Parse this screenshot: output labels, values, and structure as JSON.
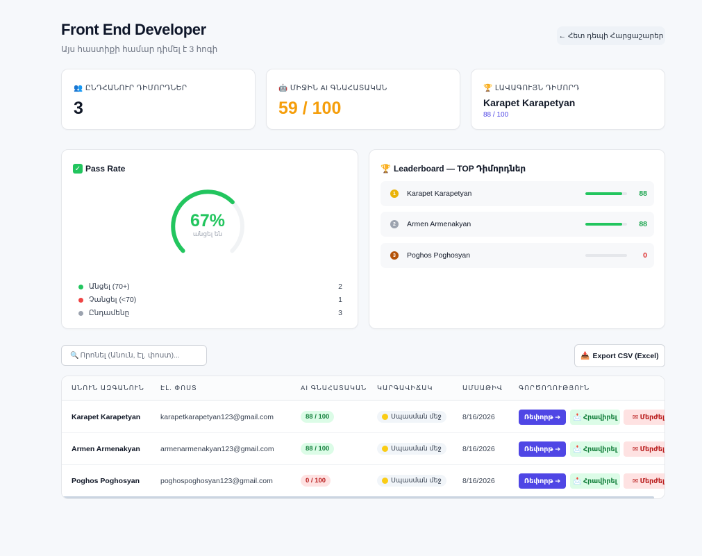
{
  "header": {
    "title": "Front End Developer",
    "subtitle": "Այս հաստիքի համար դիմել է 3 հոգի",
    "back_button": "← Հետ դեպի Հարցաշարեր"
  },
  "stats": {
    "total": {
      "icon": "👥",
      "label": "ԸՆԴՀԱՆՈՒՐ ԴԻՄՈՐԴՆԵՐ",
      "value": "3"
    },
    "average": {
      "icon": "🤖",
      "label": "ՄԻՋԻՆ AI ԳՆԱՀԱՏԱԿԱՆ",
      "value": "59 / 100",
      "color": "#f59e0b"
    },
    "best": {
      "icon": "🏆",
      "label": "ԼԱՎԱԳՈՒՅՆ ԴԻՄՈՐԴ",
      "name": "Karapet Karapetyan",
      "score": "88 / 100"
    }
  },
  "pass_rate": {
    "title": "Pass Rate",
    "percent": "67%",
    "percent_value": 0.67,
    "gauge_label": "անցել են",
    "legend": [
      {
        "label": "Անցել (70+)",
        "count": "2",
        "color": "#22c55e"
      },
      {
        "label": "Չանցել (<70)",
        "count": "1",
        "color": "#ef4444"
      },
      {
        "label": "Ընդամենը",
        "count": "3",
        "color": "#9ca3af"
      }
    ]
  },
  "leaderboard": {
    "title": "Leaderboard — TOP Դիմորդներ",
    "rows": [
      {
        "name": "Karapet Karapetyan",
        "score": "88",
        "fill": 0.88,
        "medal": "1",
        "medal_color": "#eab308",
        "score_color": "#16a34a"
      },
      {
        "name": "Armen Armenakyan",
        "score": "88",
        "fill": 0.88,
        "medal": "2",
        "medal_color": "#9ca3af",
        "score_color": "#16a34a"
      },
      {
        "name": "Poghos Poghosyan",
        "score": "0",
        "fill": 0,
        "medal": "3",
        "medal_color": "#b45309",
        "score_color": "#dc2626"
      }
    ]
  },
  "search": {
    "placeholder": "Որոնել (Անուն, Էլ. փոստ)..."
  },
  "export": {
    "icon": "📥",
    "label": "Export CSV (Excel)"
  },
  "table": {
    "headers": [
      "ԱՆՈՒՆ ԱԶԳԱՆՈՒՆ",
      "ԷԼ. ՓՈՍՏ",
      "AI ԳՆԱՀԱՏԱԿԱՆ",
      "ԿԱՐԳԱՎԻՃԱԿ",
      "ԱՄՍԱԹԻՎ",
      "ԳՈՐԾՈՂՈՒԹՅՈՒՆ"
    ],
    "rows": [
      {
        "name": "Karapet Karapetyan",
        "email": "karapetkarapetyan123@gmail.com",
        "score": "88 / 100",
        "score_type": "pass",
        "status": "Սպասման մեջ",
        "date": "8/16/2026"
      },
      {
        "name": "Armen Armenakyan",
        "email": "armenarmenakyan123@gmail.com",
        "score": "88 / 100",
        "score_type": "pass",
        "status": "Սպասման մեջ",
        "date": "8/16/2026"
      },
      {
        "name": "Poghos Poghosyan",
        "email": "poghospoghosyan123@gmail.com",
        "score": "0 / 100",
        "score_type": "fail",
        "status": "Սպասման մեջ",
        "date": "8/16/2026"
      }
    ],
    "actions": {
      "review": "Ռեփորթ ➔",
      "invite": "Հրավիրել",
      "reject": "Մերժել",
      "invite_icon": "📩",
      "reject_icon": "✉"
    }
  }
}
